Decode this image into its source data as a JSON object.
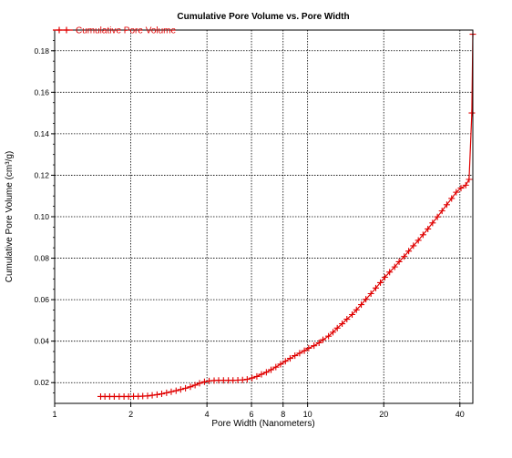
{
  "chart_data": {
    "type": "line",
    "title": "Cumulative Pore Volume vs. Pore Width",
    "xlabel": "Pore Width (Nanometers)",
    "ylabel": "Cumulative Pore Volume (cm³/g)",
    "x_scale": "log",
    "xlim": [
      1,
      45
    ],
    "ylim": [
      0.01,
      0.19
    ],
    "x_ticks": [
      1,
      2,
      4,
      6,
      8,
      10,
      20,
      40
    ],
    "x_tick_labels": [
      "1",
      "2",
      "4",
      "6",
      "8",
      "10",
      "20",
      "40"
    ],
    "y_ticks": [
      0.02,
      0.04,
      0.06,
      0.08,
      0.1,
      0.12,
      0.14,
      0.16,
      0.18
    ],
    "y_tick_labels": [
      "0.02",
      "0.04",
      "0.06",
      "0.08",
      "0.10",
      "0.12",
      "0.14",
      "0.16",
      "0.18"
    ],
    "grid": true,
    "legend_position": "top-left",
    "series": [
      {
        "name": "Cumulative Pore Volume",
        "color": "#e00000",
        "marker": "plus",
        "x": [
          1.52,
          1.58,
          1.65,
          1.72,
          1.8,
          1.88,
          1.96,
          2.05,
          2.14,
          2.23,
          2.33,
          2.43,
          2.54,
          2.65,
          2.77,
          2.89,
          3.02,
          3.15,
          3.29,
          3.44,
          3.59,
          3.74,
          3.91,
          4.08,
          4.27,
          4.45,
          4.65,
          4.86,
          5.07,
          5.3,
          5.53,
          5.77,
          6.03,
          6.3,
          6.57,
          6.87,
          7.17,
          7.49,
          7.82,
          8.17,
          8.53,
          8.91,
          9.3,
          9.71,
          10.1,
          10.6,
          11.1,
          11.5,
          12.1,
          12.6,
          13.1,
          13.7,
          14.3,
          15.0,
          15.6,
          16.3,
          17.0,
          17.8,
          18.6,
          19.4,
          20.2,
          21.1,
          22.1,
          23.0,
          24.1,
          25.1,
          26.2,
          27.4,
          28.6,
          29.9,
          31.2,
          32.6,
          34.0,
          35.5,
          37.1,
          38.7,
          40.4,
          42.2,
          43.5,
          44.6,
          45.0
        ],
        "y": [
          0.0133,
          0.0133,
          0.0133,
          0.0133,
          0.0133,
          0.0133,
          0.0133,
          0.0134,
          0.0134,
          0.0135,
          0.0136,
          0.0139,
          0.0142,
          0.0146,
          0.0151,
          0.0156,
          0.0161,
          0.0167,
          0.0173,
          0.018,
          0.0188,
          0.0197,
          0.0204,
          0.0208,
          0.021,
          0.0211,
          0.0211,
          0.0211,
          0.0211,
          0.0212,
          0.0213,
          0.0216,
          0.0222,
          0.023,
          0.024,
          0.025,
          0.0262,
          0.0275,
          0.0289,
          0.0303,
          0.0317,
          0.033,
          0.0342,
          0.0354,
          0.0366,
          0.0378,
          0.0392,
          0.0407,
          0.0424,
          0.0443,
          0.0463,
          0.0484,
          0.0506,
          0.0528,
          0.0551,
          0.0576,
          0.0602,
          0.0629,
          0.0656,
          0.0682,
          0.0708,
          0.0733,
          0.0758,
          0.0783,
          0.0808,
          0.0834,
          0.086,
          0.0886,
          0.0913,
          0.0941,
          0.097,
          0.0999,
          0.1028,
          0.1058,
          0.1088,
          0.1118,
          0.1138,
          0.1152,
          0.118,
          0.15,
          0.188
        ]
      }
    ]
  }
}
